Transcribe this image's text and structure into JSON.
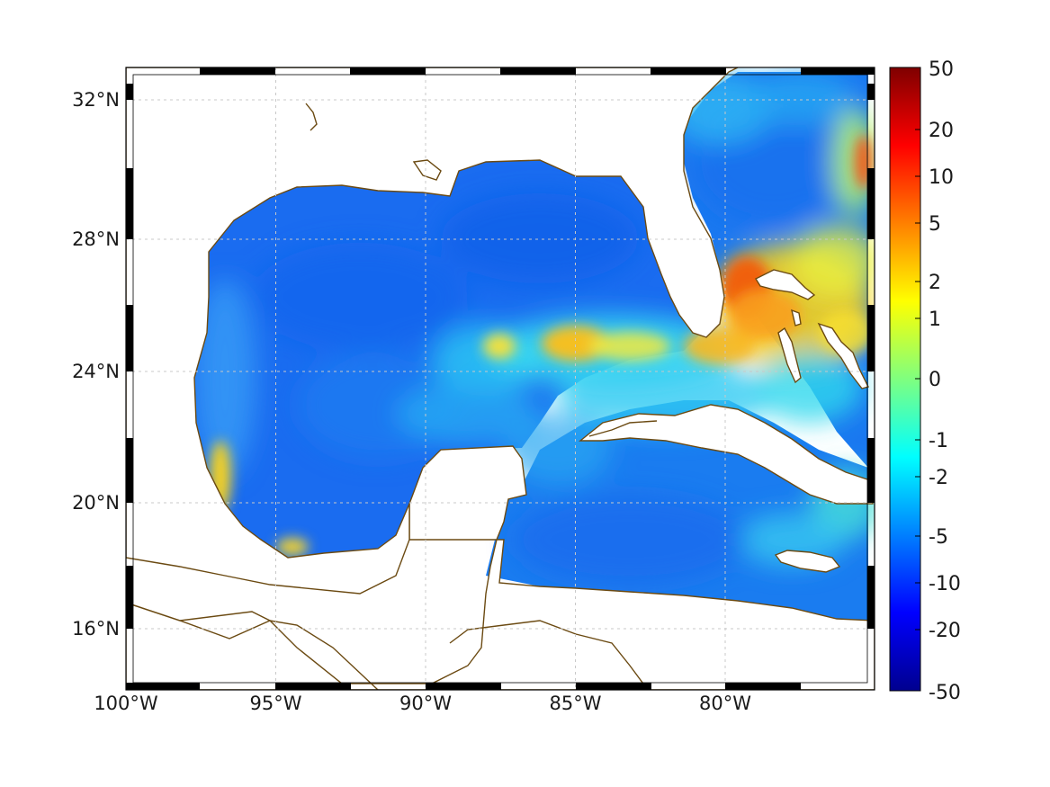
{
  "map": {
    "lon_range": [
      -100,
      -75
    ],
    "lat_range": [
      14.2,
      33
    ],
    "x_ticks": [
      {
        "lon": -100,
        "label": "100°W"
      },
      {
        "lon": -95,
        "label": "95°W"
      },
      {
        "lon": -90,
        "label": "90°W"
      },
      {
        "lon": -85,
        "label": "85°W"
      },
      {
        "lon": -80,
        "label": "80°W"
      }
    ],
    "y_ticks": [
      {
        "lat": 32,
        "label": "32°N"
      },
      {
        "lat": 28,
        "label": "28°N"
      },
      {
        "lat": 24,
        "label": "24°N"
      },
      {
        "lat": 20,
        "label": "20°N"
      },
      {
        "lat": 16,
        "label": "16°N"
      }
    ],
    "grid": "dotted",
    "coastline_color": "#6b4a12",
    "frame": "black-white checkered border"
  },
  "colorbar": {
    "colormap": "jet",
    "ticks": [
      "50",
      "20",
      "10",
      "5",
      "2",
      "1",
      "0",
      "-1",
      "-2",
      "-5",
      "-10",
      "-20",
      "-50"
    ]
  }
}
